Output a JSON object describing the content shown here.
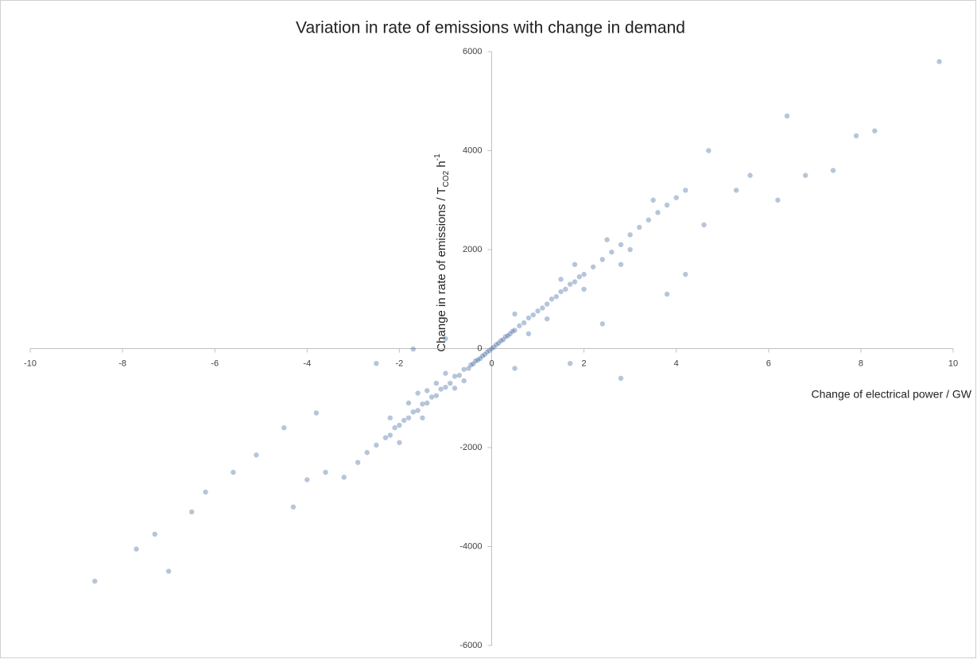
{
  "chart_data": {
    "type": "scatter",
    "title": "Variation in rate of emissions with change in demand",
    "xlabel": "Change of electrical power / GW",
    "ylabel_parts": [
      "Change in rate of emissions / T",
      "CO2",
      " h",
      "-1"
    ],
    "xlim": [
      -10,
      10
    ],
    "xticks": [
      -10,
      -8,
      -6,
      -4,
      -2,
      0,
      2,
      4,
      6,
      8,
      10
    ],
    "ylim": [
      -6000,
      6000
    ],
    "yticks": [
      -6000,
      -4000,
      -2000,
      0,
      2000,
      4000,
      6000
    ],
    "color": "#2e5a94",
    "x": [
      -0.9,
      -0.8,
      -0.7,
      -0.6,
      -0.5,
      -0.45,
      -0.4,
      -0.35,
      -0.3,
      -0.25,
      -0.2,
      -0.15,
      -0.1,
      -0.05,
      0,
      0.05,
      0.1,
      0.15,
      0.2,
      0.25,
      0.3,
      0.35,
      0.4,
      0.45,
      0.5,
      0.6,
      0.7,
      0.8,
      0.9,
      1.0,
      -1.0,
      -1.1,
      -1.2,
      -1.3,
      -1.4,
      -1.5,
      -1.6,
      -1.7,
      -1.8,
      -1.9,
      -2.0,
      -2.1,
      -2.2,
      -2.3,
      -2.5,
      -2.7,
      -2.9,
      -1.2,
      -1.5,
      -0.8,
      -1.0,
      -1.8,
      -2.2,
      -2.0,
      -1.4,
      -0.6,
      -1.6,
      1.1,
      1.2,
      1.3,
      1.4,
      1.5,
      1.6,
      1.7,
      1.8,
      1.9,
      2.0,
      2.2,
      2.4,
      2.6,
      2.8,
      3.0,
      3.2,
      3.4,
      3.6,
      3.8,
      4.0,
      4.2,
      1.2,
      1.5,
      2.0,
      2.5,
      1.8,
      3.0,
      3.5,
      0.8,
      0.5,
      2.8,
      -8.6,
      -7.7,
      -7.0,
      -7.3,
      -6.5,
      -6.2,
      -5.6,
      -5.1,
      -4.3,
      -4.0,
      -3.6,
      -3.2,
      -4.5,
      -3.8,
      -2.5,
      -1.7,
      1.7,
      2.8,
      4.2,
      4.7,
      5.6,
      6.2,
      6.4,
      6.8,
      7.4,
      7.9,
      8.3,
      9.7,
      5.3,
      4.6,
      3.8,
      2.4,
      -1.0,
      0.5
    ],
    "y": [
      -700,
      -560,
      -540,
      -420,
      -400,
      -330,
      -310,
      -250,
      -230,
      -200,
      -150,
      -120,
      -70,
      -40,
      0,
      30,
      80,
      110,
      160,
      180,
      240,
      260,
      300,
      350,
      370,
      460,
      520,
      620,
      680,
      760,
      -780,
      -820,
      -950,
      -980,
      -1100,
      -1120,
      -1250,
      -1280,
      -1400,
      -1450,
      -1550,
      -1600,
      -1750,
      -1800,
      -1950,
      -2100,
      -2300,
      -700,
      -1400,
      -800,
      -500,
      -1100,
      -1400,
      -1900,
      -850,
      -650,
      -900,
      820,
      900,
      1000,
      1050,
      1150,
      1200,
      1300,
      1350,
      1450,
      1500,
      1650,
      1800,
      1950,
      2100,
      2300,
      2450,
      2600,
      2750,
      2900,
      3050,
      3200,
      600,
      1400,
      1200,
      2200,
      1700,
      2000,
      3000,
      300,
      700,
      1700,
      -4700,
      -4050,
      -4500,
      -3750,
      -3300,
      -2900,
      -2500,
      -2150,
      -3200,
      -2650,
      -2500,
      -2600,
      -1600,
      -1300,
      -300,
      -10,
      -300,
      -600,
      1500,
      4000,
      3500,
      3000,
      4700,
      3500,
      3600,
      4300,
      4400,
      5800,
      3200,
      2500,
      1100,
      500,
      200,
      -400
    ]
  }
}
